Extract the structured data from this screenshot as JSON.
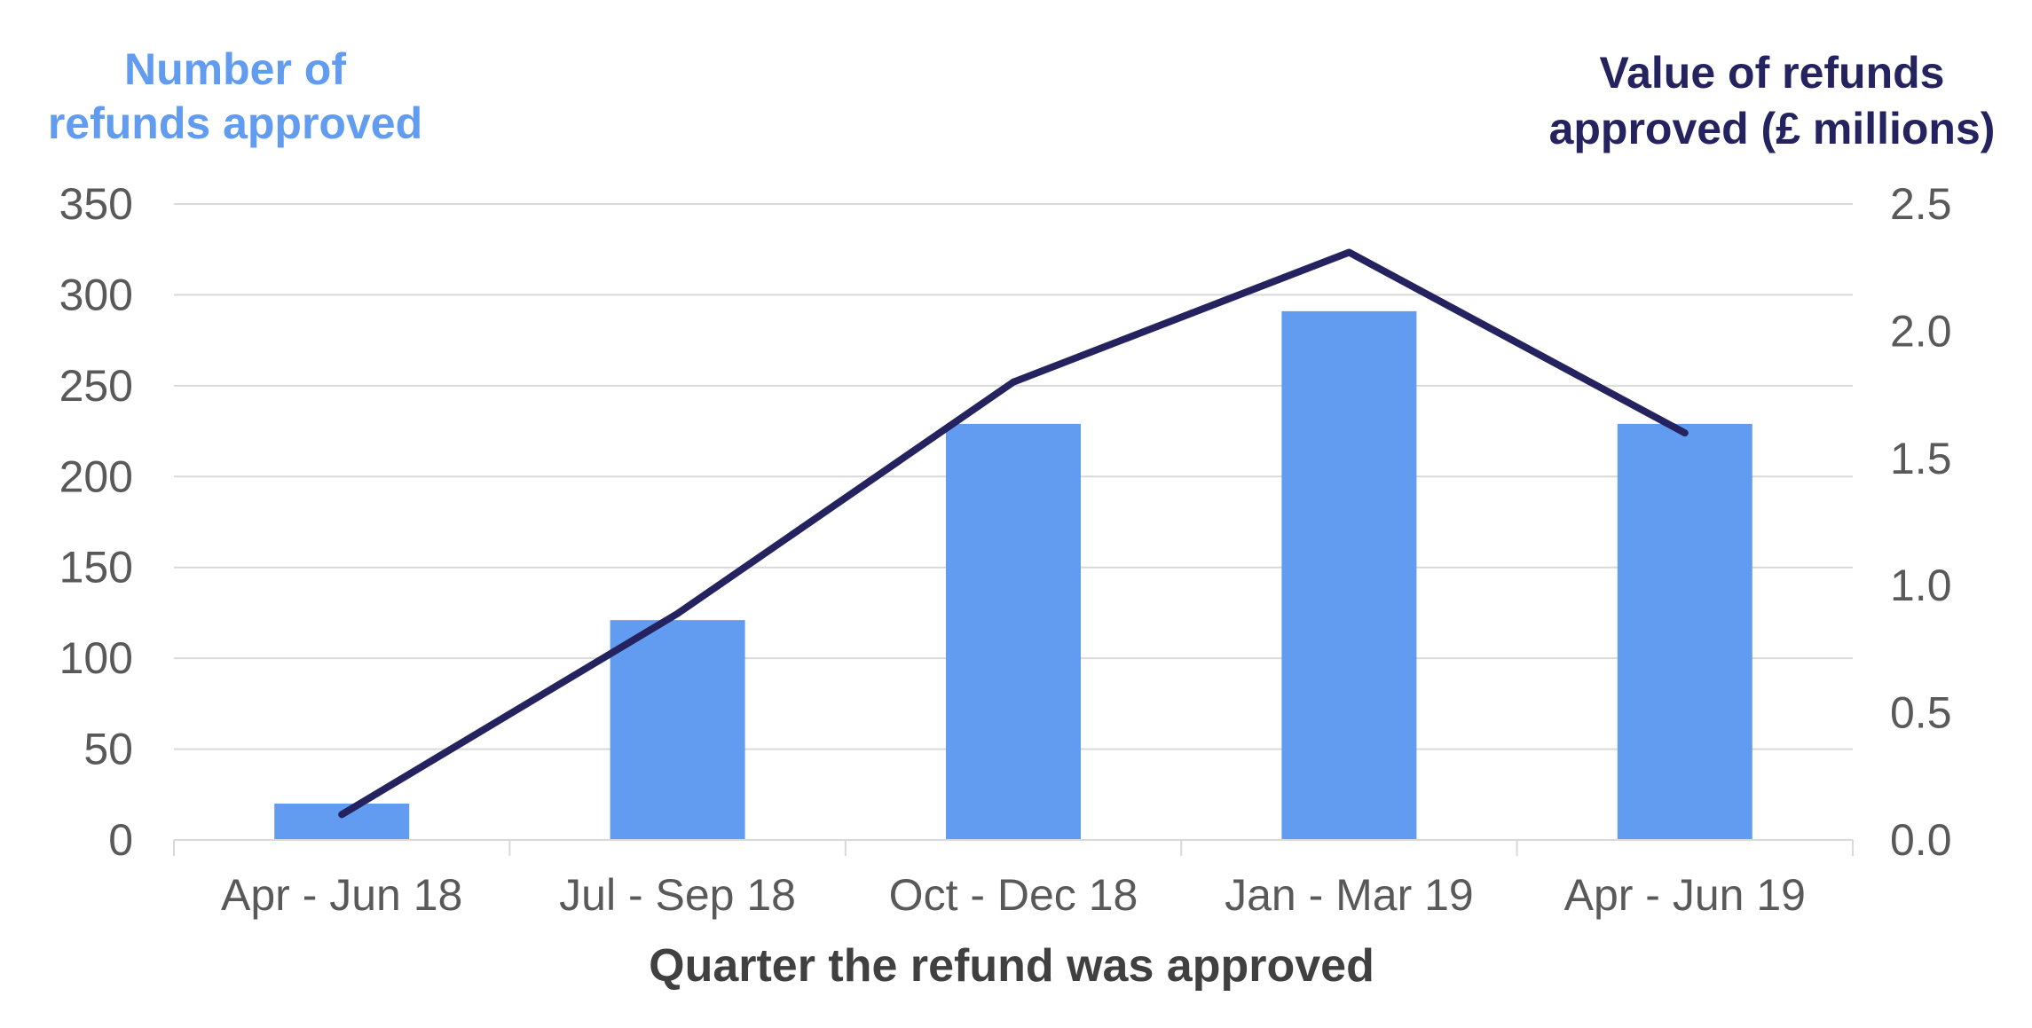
{
  "chart_data": {
    "type": "bar",
    "categories": [
      "Apr - Jun 18",
      "Jul - Sep 18",
      "Oct - Dec 18",
      "Jan - Mar 19",
      "Apr - Jun 19"
    ],
    "series": [
      {
        "name": "Number of refunds approved",
        "type": "bar",
        "axis": "left",
        "values": [
          20,
          121,
          229,
          291,
          229
        ],
        "color": "#619CF0"
      },
      {
        "name": "Value of refunds approved (£ millions)",
        "type": "line",
        "axis": "right",
        "values": [
          0.1,
          0.89,
          1.8,
          2.31,
          1.6
        ],
        "color": "#25235F"
      }
    ],
    "left_axis": {
      "title_lines": [
        "Number of",
        "refunds approved"
      ],
      "ylim": [
        0,
        350
      ],
      "ticks": [
        "0",
        "50",
        "100",
        "150",
        "200",
        "250",
        "300",
        "350"
      ],
      "color": "#619CF0"
    },
    "right_axis": {
      "title_lines": [
        "Value of refunds",
        "approved (£ millions)"
      ],
      "ylim": [
        0,
        2.5
      ],
      "ticks": [
        "0.0",
        "0.5",
        "1.0",
        "1.5",
        "2.0",
        "2.5"
      ],
      "color": "#25235F"
    },
    "xlabel": "Quarter the refund was approved",
    "grid": true
  }
}
